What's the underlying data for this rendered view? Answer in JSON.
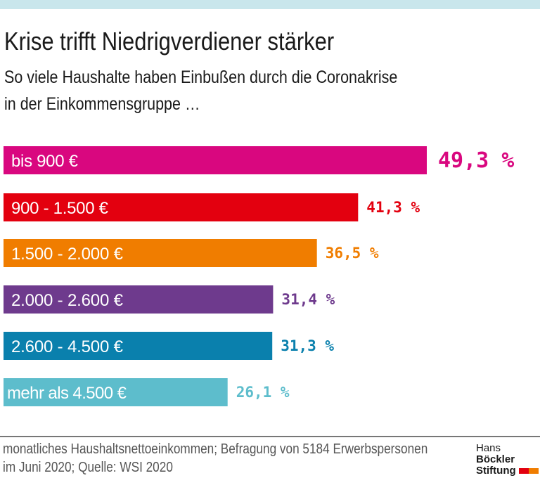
{
  "title": "Krise trifft Niedrigverdiener stärker",
  "subtitle_lines": [
    "So viele Haushalte haben Einbußen durch die Coronakrise",
    "in der Einkommensgruppe …"
  ],
  "footer_lines": [
    "monatliches Haushaltsnettoeinkommen; Befragung von 5184 Erwerbspersonen",
    "im Juni 2020; Quelle: WSI 2020"
  ],
  "logo": {
    "line1a": "Hans",
    "line1b": "Böckler",
    "line2": "Stiftung",
    "colors": [
      "#e3000f",
      "#f07d00"
    ]
  },
  "chart_data": {
    "type": "bar",
    "orientation": "horizontal",
    "categories": [
      "bis 900 €",
      "900 - 1.500 €",
      "1.500 - 2.000 €",
      "2.000 - 2.600 €",
      "2.600 - 4.500 €",
      "mehr als 4.500 €"
    ],
    "values": [
      49.3,
      41.3,
      36.5,
      31.4,
      31.3,
      26.1
    ],
    "value_labels": [
      "49,3 %",
      "41,3 %",
      "36,5 %",
      "31,4 %",
      "31,3 %",
      "26,1 %"
    ],
    "colors": [
      "#d9077f",
      "#e3000f",
      "#f07d00",
      "#6e3a8d",
      "#0a80ad",
      "#5dbdcc"
    ],
    "unit": "%"
  }
}
